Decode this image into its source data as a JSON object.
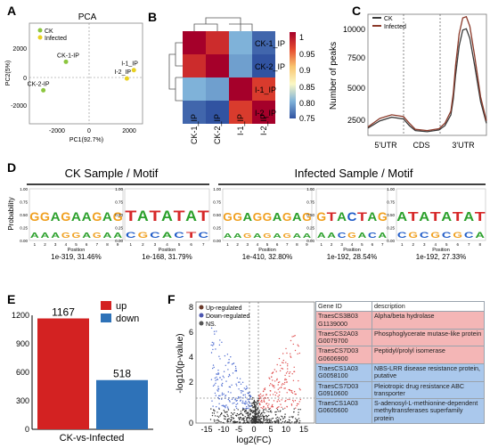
{
  "colors": {
    "ck": "#3a3a3a",
    "infected": "#8b3a2a",
    "up": "#d32222",
    "down": "#2e72b8",
    "pca_ck": "#8cc63f",
    "pca_inf": "#e8d020"
  },
  "panels": {
    "A": {
      "letter": "A",
      "title": "PCA",
      "xlabel": "PC1(92.7%)",
      "ylabel": "PC2(5%)",
      "legend": [
        "CK",
        "Infected"
      ],
      "xticks": [
        "-2000",
        "0",
        "2000"
      ],
      "yticks": [
        "2000",
        "0",
        "-2000"
      ],
      "points": [
        {
          "label": "CK-1-IP",
          "group": "CK",
          "x": -1400,
          "y": 700
        },
        {
          "label": "CK-2-IP",
          "group": "CK",
          "x": -2700,
          "y": -1000
        },
        {
          "label": "I-1_IP",
          "group": "Infected",
          "x": 2500,
          "y": 200
        },
        {
          "label": "I-2_IP",
          "group": "Infected",
          "x": 2100,
          "y": -300
        }
      ]
    },
    "B": {
      "letter": "B",
      "rows": [
        "CK-1_IP",
        "CK-2_IP",
        "I-1_IP",
        "I-2_IP"
      ],
      "cols": [
        "CK-1_IP",
        "CK-2_IP",
        "I-1_IP",
        "I-2_IP"
      ],
      "colorbar_ticks": [
        "1",
        "0.95",
        "0.9",
        "0.85",
        "0.80",
        "0.75"
      ],
      "matrix": [
        [
          1.0,
          0.97,
          0.8,
          0.76
        ],
        [
          0.97,
          1.0,
          0.79,
          0.75
        ],
        [
          0.8,
          0.79,
          1.0,
          0.96
        ],
        [
          0.76,
          0.75,
          0.96,
          1.0
        ]
      ]
    },
    "C": {
      "letter": "C",
      "ylabel": "Number of peaks",
      "legend": [
        "CK",
        "Infected"
      ],
      "yticks": [
        "10000",
        "7500",
        "5000",
        "2500"
      ],
      "regions": [
        "5'UTR",
        "CDS",
        "3'UTR"
      ]
    },
    "D": {
      "letter": "D",
      "ylabel": "Probability",
      "group_ck": "CK Sample / Motif",
      "group_inf": "Infected Sample / Motif",
      "xlabel": "Position",
      "motifs": [
        {
          "letters": "GGAGAAGAG",
          "positions": "123456789",
          "caption": "1e-319, 31.46%"
        },
        {
          "letters": "TATATAT",
          "positions": "1234567",
          "caption": "1e-168, 31.79%"
        },
        {
          "letters": "GGAGGAGAG",
          "positions": "123456789",
          "caption": "1e-410, 32.80%"
        },
        {
          "letters": "GTACTAG",
          "positions": "1234567",
          "caption": "1e-192, 28.54%"
        },
        {
          "letters": "ATATATAT",
          "positions": "12345678",
          "caption": "1e-192, 27.33%"
        }
      ]
    },
    "E": {
      "letter": "E",
      "xlabel": "CK-vs-Infected",
      "legend": [
        "up",
        "down"
      ],
      "yticks": [
        "1200",
        "900",
        "600",
        "300",
        "0"
      ]
    },
    "F": {
      "letter": "F",
      "ylabel": "-log10(p-value)",
      "xlabel": "log2(FC)",
      "legend": [
        "Up-regulated",
        "Down-regulated",
        "NS."
      ],
      "xticks": [
        "-15",
        "-10",
        "-5",
        "0",
        "5",
        "10",
        "15"
      ],
      "yticks": [
        "8",
        "6",
        "4",
        "2",
        "0"
      ]
    }
  },
  "chart_data": [
    {
      "type": "scatter",
      "title": "PCA",
      "xlabel": "PC1(92.7%)",
      "ylabel": "PC2(5%)",
      "xlim": [
        -3500,
        3000
      ],
      "ylim": [
        -3000,
        3000
      ],
      "series": [
        {
          "name": "CK",
          "points": [
            [
              -1400,
              700
            ],
            [
              -2700,
              -1000
            ]
          ]
        },
        {
          "name": "Infected",
          "points": [
            [
              2500,
              200
            ],
            [
              2100,
              -300
            ]
          ]
        }
      ]
    },
    {
      "type": "heatmap",
      "rows": [
        "CK-1_IP",
        "CK-2_IP",
        "I-1_IP",
        "I-2_IP"
      ],
      "cols": [
        "CK-1_IP",
        "CK-2_IP",
        "I-1_IP",
        "I-2_IP"
      ],
      "values": [
        [
          1.0,
          0.97,
          0.8,
          0.76
        ],
        [
          0.97,
          1.0,
          0.79,
          0.75
        ],
        [
          0.8,
          0.79,
          1.0,
          0.96
        ],
        [
          0.76,
          0.75,
          0.96,
          1.0
        ]
      ],
      "zlim": [
        0.75,
        1
      ]
    },
    {
      "type": "line",
      "ylabel": "Number of peaks",
      "categories": [
        "5'UTR",
        "CDS",
        "3'UTR"
      ],
      "ylim": [
        1000,
        11000
      ],
      "x": [
        0,
        0.1,
        0.2,
        0.3,
        0.35,
        0.4,
        0.5,
        0.6,
        0.65,
        0.7,
        0.72,
        0.74,
        0.77,
        0.8,
        0.83,
        0.86,
        0.9,
        0.95,
        1.0
      ],
      "series": [
        {
          "name": "CK",
          "values": [
            1600,
            2200,
            2500,
            2350,
            1800,
            1400,
            1300,
            1450,
            1800,
            2700,
            4000,
            6000,
            8400,
            9700,
            9800,
            9000,
            6800,
            3800,
            2000
          ]
        },
        {
          "name": "Infected",
          "values": [
            1700,
            2400,
            2700,
            2550,
            2000,
            1500,
            1400,
            1550,
            2000,
            3000,
            4500,
            6800,
            9400,
            10700,
            10800,
            10000,
            7600,
            4200,
            2200
          ]
        }
      ]
    },
    {
      "type": "bar",
      "categories": [
        "up",
        "down"
      ],
      "values": [
        1167,
        518
      ],
      "xlabel": "CK-vs-Infected",
      "ylim": [
        0,
        1200
      ]
    },
    {
      "type": "table",
      "columns": [
        "Gene ID",
        "description"
      ],
      "rows": [
        {
          "regulation": "up",
          "gene": "TraesCS3B03 G1139000",
          "description": "Alpha/beta hydrolase"
        },
        {
          "regulation": "up",
          "gene": "TraesCS2A03 G0079700",
          "description": "Phosphoglycerate mutase-like protein"
        },
        {
          "regulation": "up",
          "gene": "TraesCS7D03 G0606900",
          "description": "Peptidyl/prolyl isomerase"
        },
        {
          "regulation": "down",
          "gene": "TraesCS1A03 G0058100",
          "description": "NBS-LRR disease resistance protein, putative"
        },
        {
          "regulation": "down",
          "gene": "TraesCS7D03 G0910600",
          "description": "Pleiotropic drug resistance ABC transporter"
        },
        {
          "regulation": "down",
          "gene": "TraesCS1A03 G0605600",
          "description": "S-adenosyl-L-methionine-dependent methyltransferases superfamily protein"
        }
      ]
    }
  ]
}
